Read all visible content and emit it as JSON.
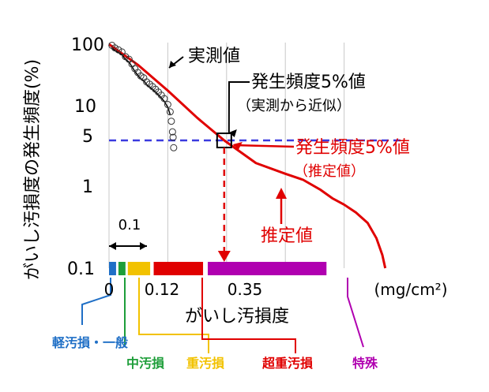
{
  "chart_data": {
    "type": "scatter",
    "ylabel": "がいし汚損度の発生頻度(%)",
    "xlabel": "がいし汚損度",
    "x_unit": "(mg/cm²)",
    "y_scale": "log",
    "ylim": [
      0.1,
      100
    ],
    "xlim": [
      0,
      0.5
    ],
    "y_ticks": [
      "100",
      "10",
      "5",
      "1",
      "0.1"
    ],
    "x_ticks": [
      "0",
      "0.12",
      "0.35"
    ],
    "bracket_label": "0.1",
    "grid": true,
    "threshold_y": 5,
    "threshold_x": 0.196,
    "colors": {
      "measured": "#000000",
      "estimated": "#e00000",
      "threshold": "#3a3adf",
      "light": "#1f6fc6",
      "medium": "#1e9e3a",
      "heavy": "#f2c200",
      "very_heavy": "#e00000",
      "special": "#b000b0"
    },
    "measured": {
      "name": "実測値",
      "x": [
        0.005,
        0.01,
        0.016,
        0.022,
        0.028,
        0.034,
        0.039,
        0.044,
        0.049,
        0.054,
        0.059,
        0.064,
        0.069,
        0.074,
        0.079,
        0.084,
        0.089,
        0.094,
        0.1,
        0.104,
        0.106,
        0.108,
        0.109,
        0.11
      ],
      "y": [
        92,
        85,
        80,
        75,
        65,
        60,
        52,
        45,
        40,
        36,
        34,
        30,
        28,
        26,
        24,
        22,
        20,
        18,
        15,
        12,
        9,
        6.5,
        5.5,
        4
      ]
    },
    "estimated": {
      "name": "推定値",
      "x": [
        0.0,
        0.05,
        0.1,
        0.15,
        0.196,
        0.25,
        0.3,
        0.33,
        0.36,
        0.38,
        0.4,
        0.42,
        0.44,
        0.455,
        0.465,
        0.47
      ],
      "y": [
        95,
        50,
        23,
        10,
        5,
        2.5,
        1.8,
        1.5,
        1.1,
        0.85,
        0.7,
        0.55,
        0.4,
        0.25,
        0.15,
        0.1
      ]
    },
    "categories": [
      {
        "name": "軽汚損・一般",
        "color": "#1f6fc6"
      },
      {
        "name": "中汚損",
        "color": "#1e9e3a"
      },
      {
        "name": "重汚損",
        "color": "#f2c200"
      },
      {
        "name": "超重汚損",
        "color": "#e00000"
      },
      {
        "name": "特殊",
        "color": "#b000b0"
      }
    ],
    "annotations": {
      "measured_label": "実測値",
      "measured_freq_title": "発生頻度5%値",
      "measured_freq_sub": "（実測から近似）",
      "estimated_freq_title": "発生頻度5%値",
      "estimated_freq_sub": "（推定値）",
      "estimated_label": "推定値"
    }
  }
}
